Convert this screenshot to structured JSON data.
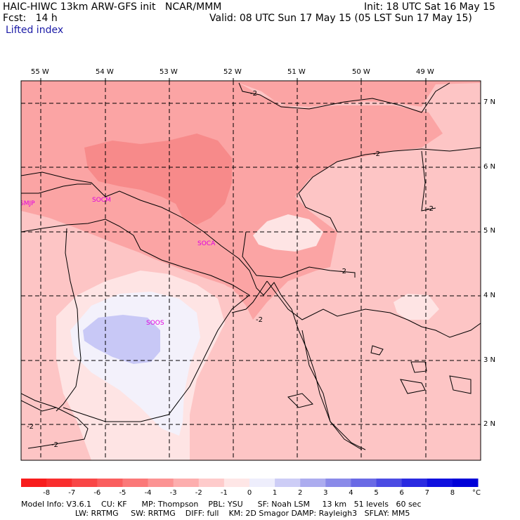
{
  "header": {
    "model_line": "HAIC-HIWC 13km ARW-GFS init   NCAR/MMM",
    "forecast_line": "Fcst:   14 h",
    "init_line": "Init: 18 UTC Sat 16 May 15",
    "valid_line": "Valid: 08 UTC Sun 17 May 15 (05 LST Sun 17 May 15)",
    "field_name": "Lifted index"
  },
  "map": {
    "lon_labels": [
      "55 W",
      "54 W",
      "53 W",
      "52 W",
      "51 W",
      "50 W",
      "49 W"
    ],
    "lat_labels": [
      "7 N",
      "6 N",
      "5 N",
      "4 N",
      "3 N",
      "2 N"
    ],
    "stations": [
      "SMJP",
      "SOCM",
      "SOCA",
      "SOOS"
    ],
    "contour_label": "-2",
    "colors": {
      "lift_m4_m3": "#f78a8a",
      "lift_m3_m2": "#fba4a4",
      "lift_m2_m1": "#fdc5c5",
      "lift_m1_0": "#fee4e4",
      "lift_0_1": "#f3f1fb",
      "lift_1_2": "#c8c8f6",
      "station_label": "#e000e0"
    }
  },
  "colorbar": {
    "ticks": [
      "-8",
      "-7",
      "-6",
      "-5",
      "-4",
      "-3",
      "-2",
      "-1",
      "0",
      "1",
      "2",
      "3",
      "4",
      "5",
      "6",
      "7",
      "8"
    ],
    "unit": "°C",
    "colors": [
      "#f81c1c",
      "#f92e2e",
      "#f94646",
      "#fa5e5e",
      "#fb7878",
      "#fc9393",
      "#fdaeae",
      "#fecbcb",
      "#fee6e6",
      "#eeeefc",
      "#cdcdf6",
      "#acacef",
      "#8a8ae9",
      "#6a6ae5",
      "#4b4be3",
      "#2a2ae1",
      "#0f0fdf",
      "#0000d8"
    ]
  },
  "model_info": {
    "line1": "Model Info: V3.6.1    CU: KF      MP: Thompson    PBL: YSU      SF: Noah LSM     13 km   51 levels   60 sec",
    "line2": "                      LW: RRTMG     SW: RRTMG    DIFF: full    KM: 2D Smagor DAMP: Rayleigh3   SFLAY: MM5"
  }
}
